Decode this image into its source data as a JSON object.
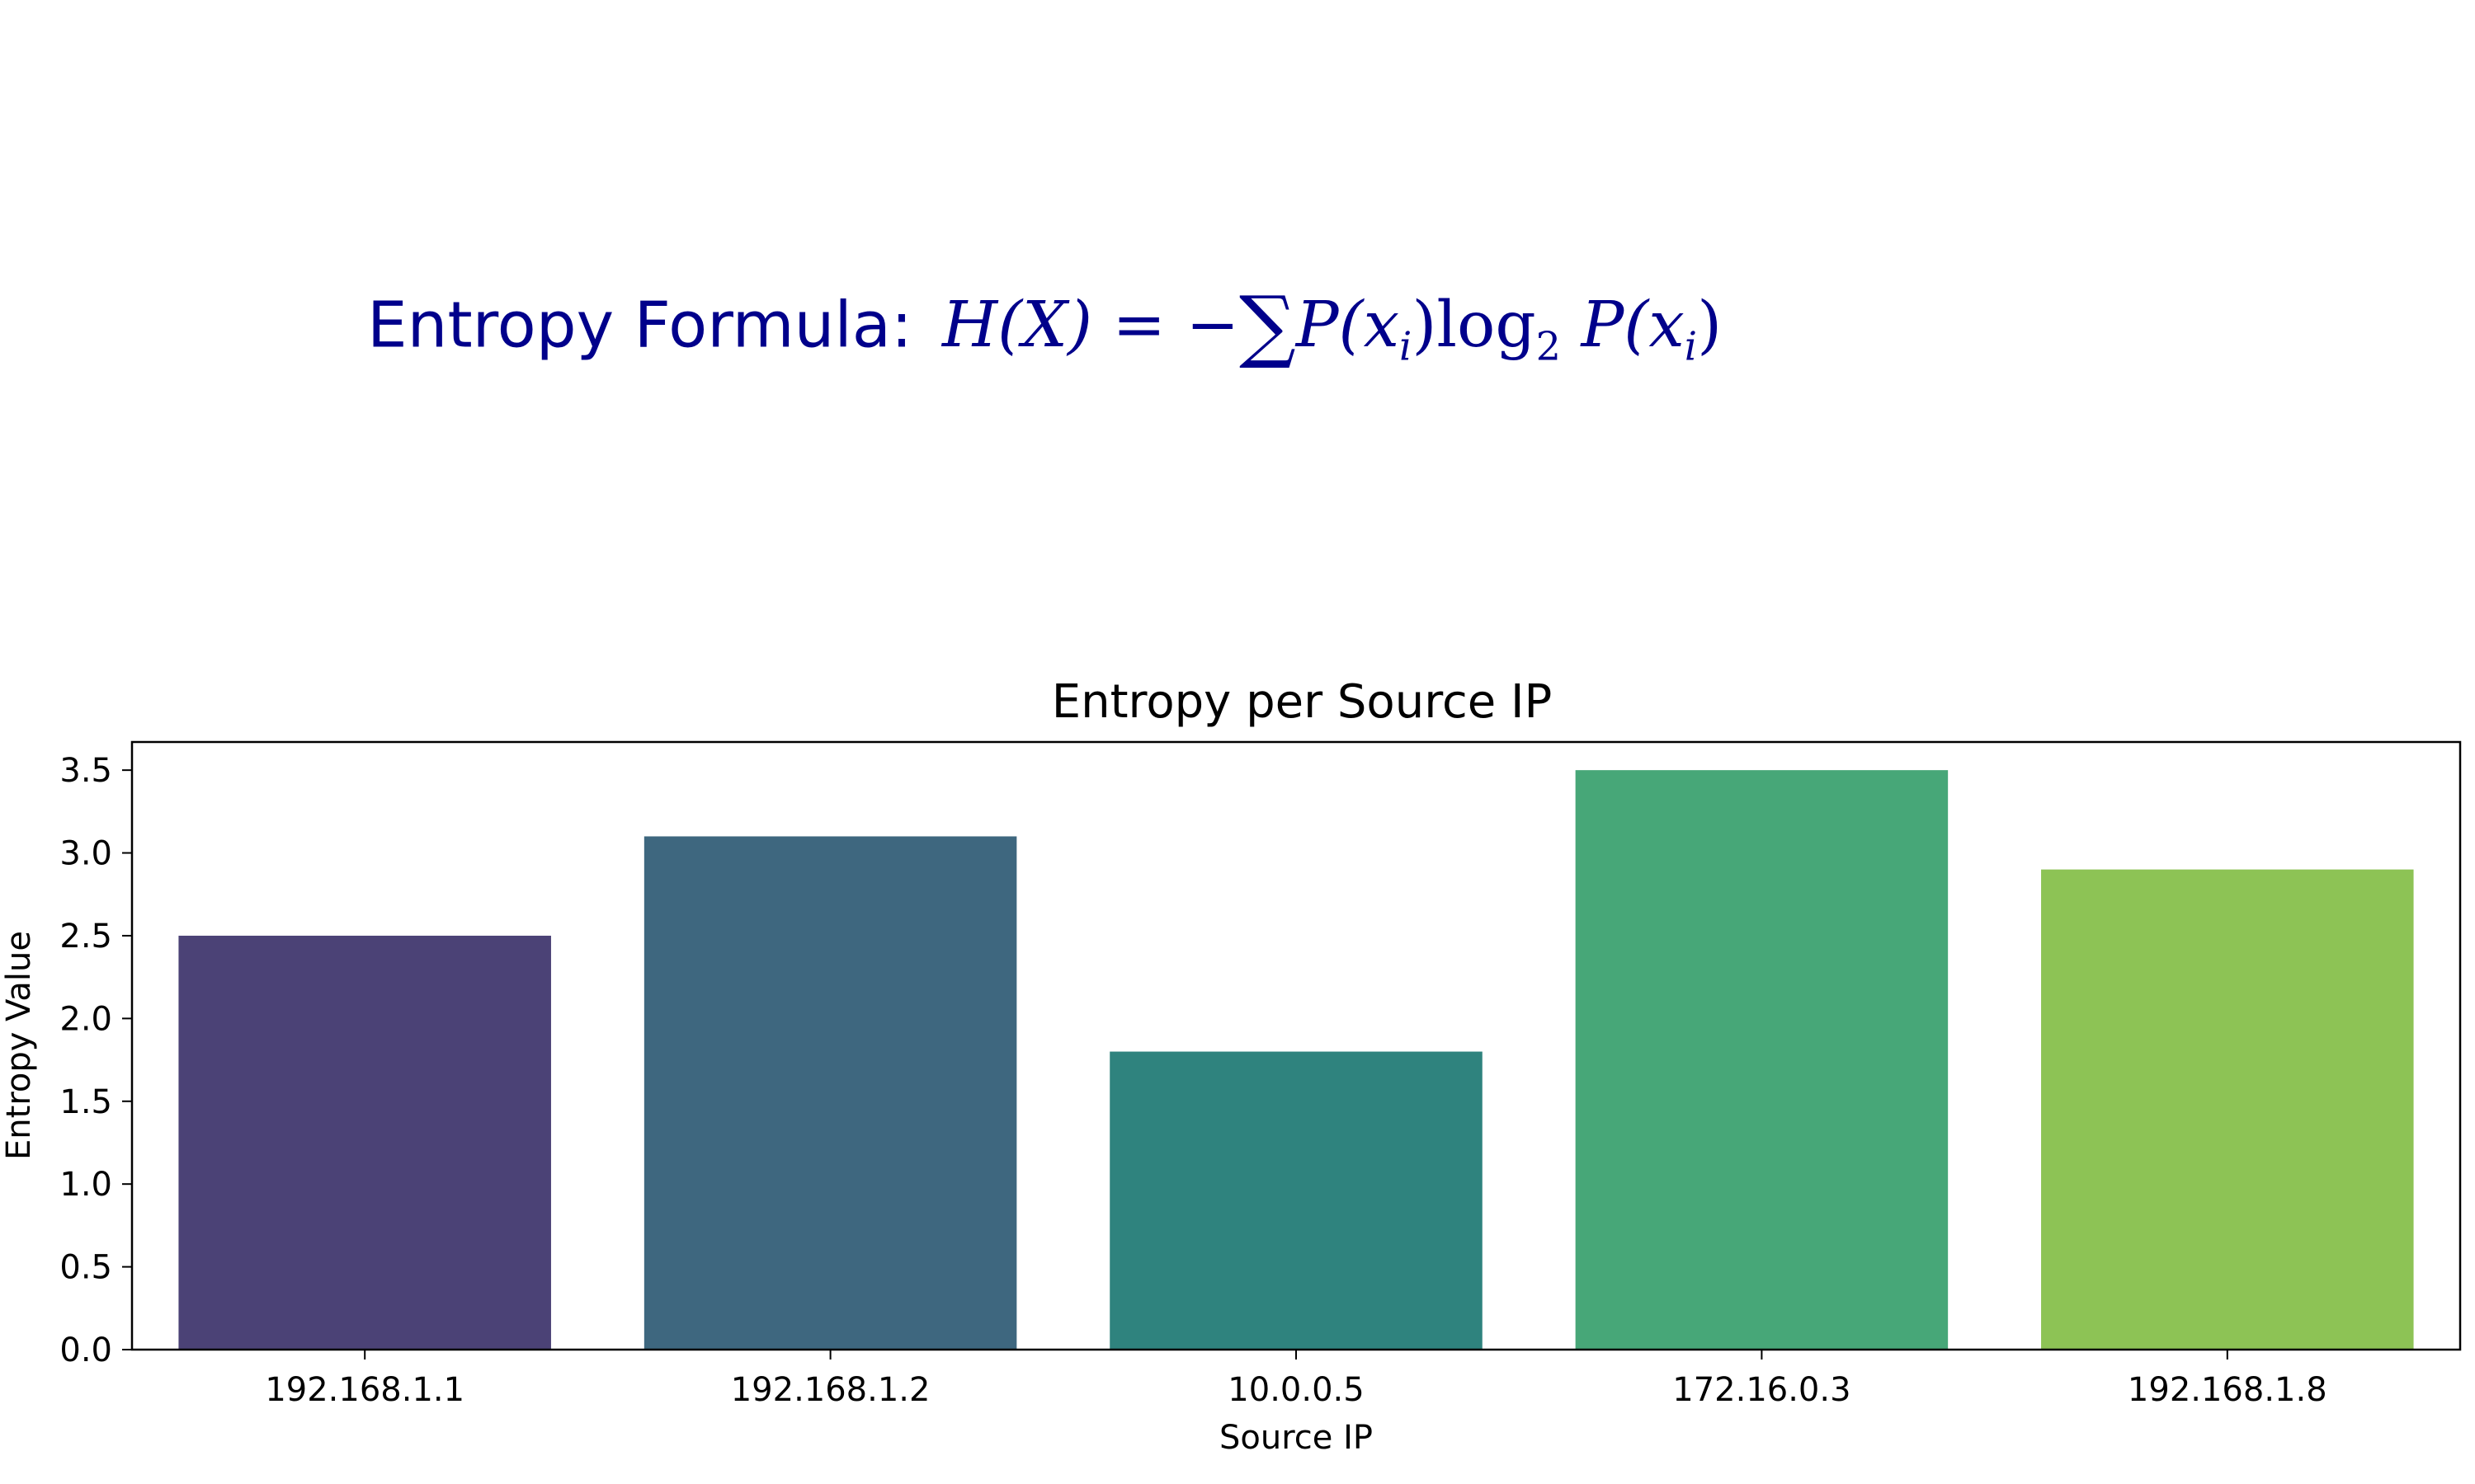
{
  "formula": {
    "label": "Entropy Formula:",
    "expression": {
      "lhs": "H(X)",
      "equals": "=",
      "minus": "−",
      "sum": "∑",
      "term_p": "P(x",
      "term_i": "i",
      "term_close": ")",
      "log": "log",
      "log_base": "2",
      "term2_p": "P(x",
      "term2_i": "i",
      "term2_close": ")"
    },
    "color": "#00008b"
  },
  "chart_data": {
    "type": "bar",
    "title": "Entropy per Source IP",
    "xlabel": "Source IP",
    "ylabel": "Entropy Value",
    "categories": [
      "192.168.1.1",
      "192.168.1.2",
      "10.0.0.5",
      "172.16.0.3",
      "192.168.1.8"
    ],
    "values": [
      2.5,
      3.1,
      1.8,
      3.5,
      2.9
    ],
    "colors": [
      "#4b4276",
      "#3e677f",
      "#2f837e",
      "#47a778",
      "#8dc355"
    ],
    "ylim": [
      0,
      3.67
    ],
    "yticks": [
      "0.0",
      "0.5",
      "1.0",
      "1.5",
      "2.0",
      "2.5",
      "3.0",
      "3.5"
    ],
    "grid": false
  }
}
